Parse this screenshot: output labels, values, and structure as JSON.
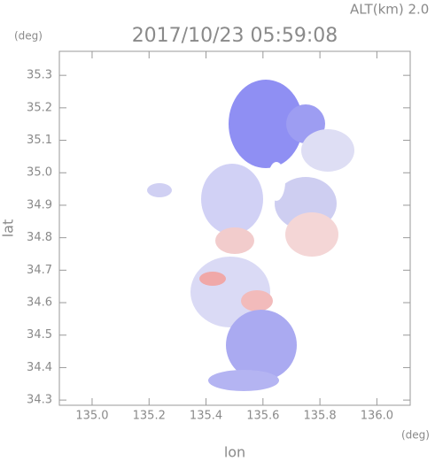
{
  "chart_data": {
    "type": "radar-map",
    "title": "2017/10/23 05:59:08",
    "subtitle": "ALT(km) 2.0",
    "xlabel": "lon",
    "ylabel": "lat",
    "xunit": "(deg)",
    "yunit": "(deg)",
    "xlim": [
      134.885,
      136.117
    ],
    "ylim": [
      34.284,
      35.374
    ],
    "xticks": [
      {
        "value": 135.0,
        "label": "135.0"
      },
      135.2,
      135.4,
      135.6,
      135.8,
      {
        "value": 136.0,
        "label": "136.0"
      }
    ],
    "yticks": [
      34.3,
      34.4,
      34.5,
      34.6,
      34.7,
      34.8,
      34.9,
      {
        "value": 35.0,
        "label": "35.0"
      },
      35.1,
      35.2,
      35.3
    ],
    "grid": false
  }
}
